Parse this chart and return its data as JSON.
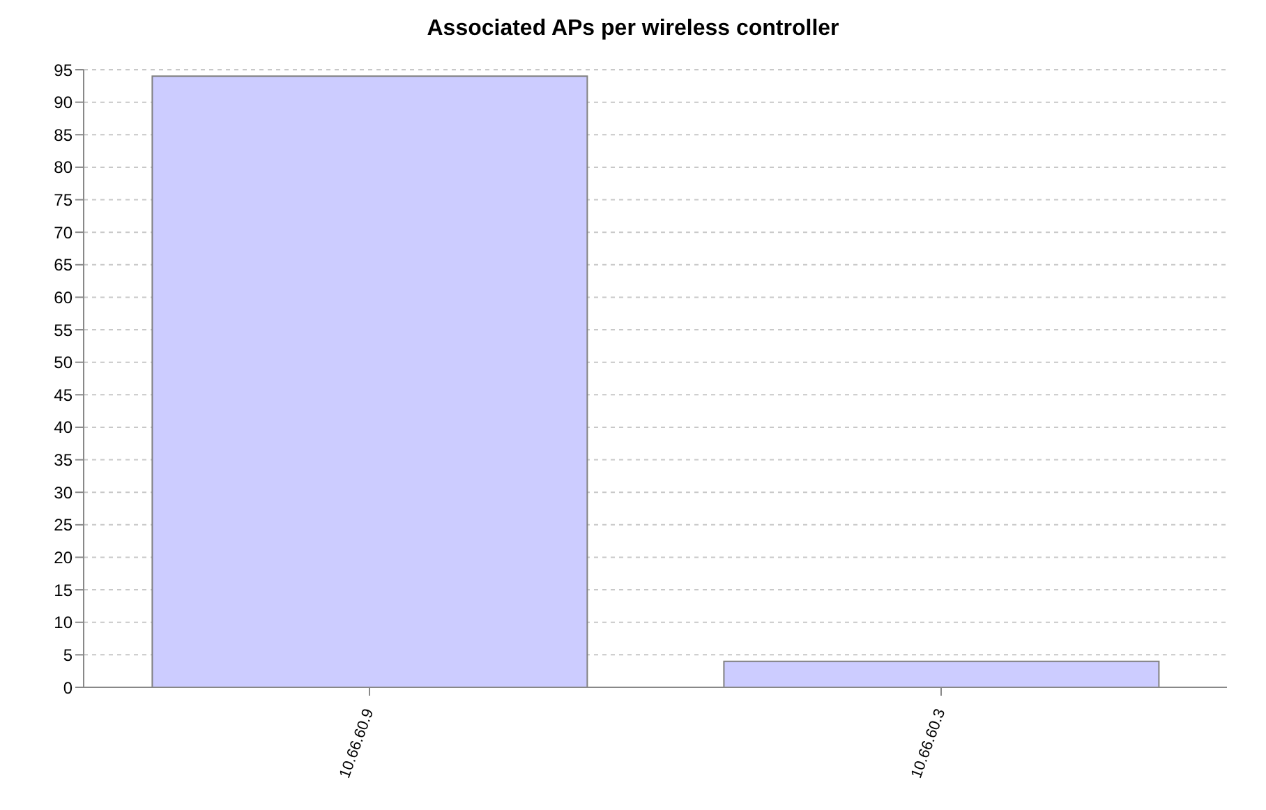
{
  "chart_data": {
    "type": "bar",
    "title": "Associated APs per wireless controller",
    "categories": [
      "10.66.60.9",
      "10.66.60.3"
    ],
    "values": [
      94,
      4
    ],
    "color": "#ccccff",
    "ylim": [
      0,
      95
    ],
    "yticks": [
      0,
      5,
      10,
      15,
      20,
      25,
      30,
      35,
      40,
      45,
      50,
      55,
      60,
      65,
      70,
      75,
      80,
      85,
      90,
      95
    ],
    "grid": "y"
  }
}
